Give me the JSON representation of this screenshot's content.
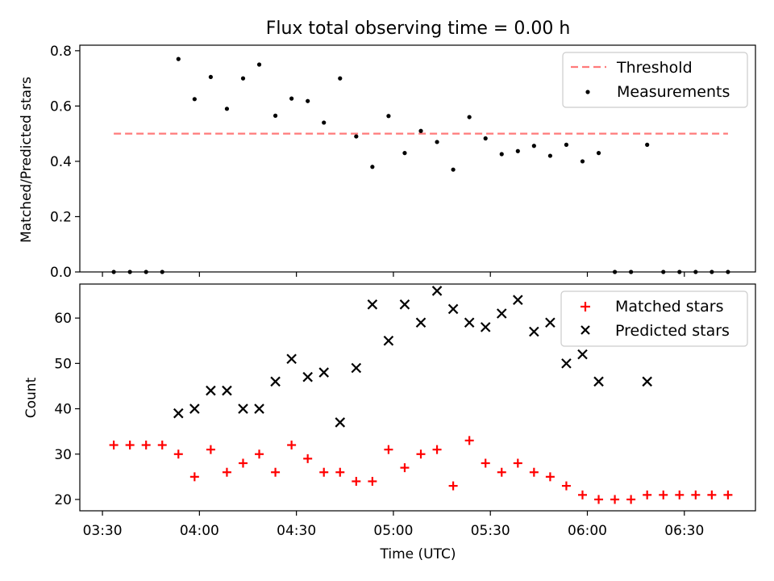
{
  "chart_data": [
    {
      "type": "scatter",
      "title": "Flux total observing time = 0.00 h",
      "xlabel": "",
      "ylabel": "Matched/Predicted stars",
      "ylim": [
        0,
        0.82
      ],
      "yticks": [
        "0.0",
        "0.2",
        "0.4",
        "0.6",
        "0.8"
      ],
      "x_unit": "minutes since 03:30 UTC",
      "xlim": [
        -7,
        202
      ],
      "threshold": {
        "name": "Threshold",
        "value": 0.5,
        "x_range": [
          3.5,
          193.5
        ],
        "color": "#ff7a7a"
      },
      "series": [
        {
          "name": "Measurements",
          "color": "#000000",
          "points": [
            [
              3.5,
              0.0
            ],
            [
              8.5,
              0.0
            ],
            [
              13.5,
              0.0
            ],
            [
              18.5,
              0.0
            ],
            [
              23.5,
              0.77
            ],
            [
              28.5,
              0.625
            ],
            [
              33.5,
              0.705
            ],
            [
              38.5,
              0.59
            ],
            [
              43.5,
              0.7
            ],
            [
              48.5,
              0.75
            ],
            [
              53.5,
              0.565
            ],
            [
              58.5,
              0.627
            ],
            [
              63.5,
              0.618
            ],
            [
              68.5,
              0.54
            ],
            [
              73.5,
              0.7
            ],
            [
              78.5,
              0.49
            ],
            [
              83.5,
              0.38
            ],
            [
              88.5,
              0.564
            ],
            [
              93.5,
              0.43
            ],
            [
              98.5,
              0.51
            ],
            [
              103.5,
              0.47
            ],
            [
              108.5,
              0.37
            ],
            [
              113.5,
              0.56
            ],
            [
              118.5,
              0.483
            ],
            [
              123.5,
              0.426
            ],
            [
              128.5,
              0.437
            ],
            [
              133.5,
              0.456
            ],
            [
              138.5,
              0.42
            ],
            [
              143.5,
              0.46
            ],
            [
              148.5,
              0.4
            ],
            [
              153.5,
              0.43
            ],
            [
              158.5,
              0.0
            ],
            [
              163.5,
              0.0
            ],
            [
              168.5,
              0.46
            ],
            [
              173.5,
              0.0
            ],
            [
              178.5,
              0.0
            ],
            [
              183.5,
              0.0
            ],
            [
              188.5,
              0.0
            ],
            [
              193.5,
              0.0
            ]
          ]
        }
      ],
      "legend": {
        "position": "top-right",
        "entries": [
          "Threshold",
          "Measurements"
        ]
      }
    },
    {
      "type": "scatter",
      "title": "",
      "xlabel": "Time (UTC)",
      "ylabel": "Count",
      "ylim": [
        17.5,
        67.5
      ],
      "yticks": [
        "20",
        "30",
        "40",
        "50",
        "60"
      ],
      "x_unit": "minutes since 03:30 UTC",
      "xlim": [
        -7,
        202
      ],
      "xticks": [
        "03:30",
        "04:00",
        "04:30",
        "05:00",
        "05:30",
        "06:00",
        "06:30"
      ],
      "series": [
        {
          "name": "Matched stars",
          "marker": "+",
          "color": "#ff0000",
          "points": [
            [
              3.5,
              32
            ],
            [
              8.5,
              32
            ],
            [
              13.5,
              32
            ],
            [
              18.5,
              32
            ],
            [
              23.5,
              30
            ],
            [
              28.5,
              25
            ],
            [
              33.5,
              31
            ],
            [
              38.5,
              26
            ],
            [
              43.5,
              28
            ],
            [
              48.5,
              30
            ],
            [
              53.5,
              26
            ],
            [
              58.5,
              32
            ],
            [
              63.5,
              29
            ],
            [
              68.5,
              26
            ],
            [
              73.5,
              26
            ],
            [
              78.5,
              24
            ],
            [
              83.5,
              24
            ],
            [
              88.5,
              31
            ],
            [
              93.5,
              27
            ],
            [
              98.5,
              30
            ],
            [
              103.5,
              31
            ],
            [
              108.5,
              23
            ],
            [
              113.5,
              33
            ],
            [
              118.5,
              28
            ],
            [
              123.5,
              26
            ],
            [
              128.5,
              28
            ],
            [
              133.5,
              26
            ],
            [
              138.5,
              25
            ],
            [
              143.5,
              23
            ],
            [
              148.5,
              21
            ],
            [
              153.5,
              20
            ],
            [
              158.5,
              20
            ],
            [
              163.5,
              20
            ],
            [
              168.5,
              21
            ],
            [
              173.5,
              21
            ],
            [
              178.5,
              21
            ],
            [
              183.5,
              21
            ],
            [
              188.5,
              21
            ],
            [
              193.5,
              21
            ]
          ]
        },
        {
          "name": "Predicted stars",
          "marker": "x",
          "color": "#000000",
          "points": [
            [
              23.5,
              39
            ],
            [
              28.5,
              40
            ],
            [
              33.5,
              44
            ],
            [
              38.5,
              44
            ],
            [
              43.5,
              40
            ],
            [
              48.5,
              40
            ],
            [
              53.5,
              46
            ],
            [
              58.5,
              51
            ],
            [
              63.5,
              47
            ],
            [
              68.5,
              48
            ],
            [
              73.5,
              37
            ],
            [
              78.5,
              49
            ],
            [
              83.5,
              63
            ],
            [
              88.5,
              55
            ],
            [
              93.5,
              63
            ],
            [
              98.5,
              59
            ],
            [
              103.5,
              66
            ],
            [
              108.5,
              62
            ],
            [
              113.5,
              59
            ],
            [
              118.5,
              58
            ],
            [
              123.5,
              61
            ],
            [
              128.5,
              64
            ],
            [
              133.5,
              57
            ],
            [
              138.5,
              59
            ],
            [
              143.5,
              50
            ],
            [
              148.5,
              52
            ],
            [
              153.5,
              46
            ],
            [
              168.5,
              46
            ]
          ]
        }
      ],
      "legend": {
        "position": "top-right",
        "entries": [
          "Matched stars",
          "Predicted stars"
        ]
      }
    }
  ]
}
